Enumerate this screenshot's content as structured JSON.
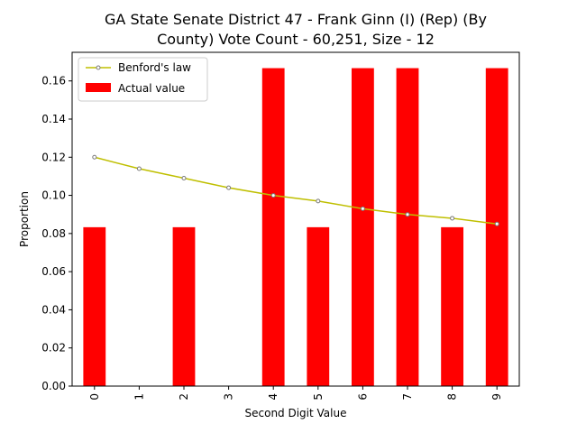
{
  "chart_data": {
    "type": "bar",
    "title_lines": [
      "GA State Senate District 47 - Frank Ginn (I) (Rep) (By",
      "County) Vote Count - 60,251, Size - 12"
    ],
    "xlabel": "Second Digit Value",
    "ylabel": "Proportion",
    "categories": [
      "0",
      "1",
      "2",
      "3",
      "4",
      "5",
      "6",
      "7",
      "8",
      "9"
    ],
    "ylim": [
      0,
      0.175
    ],
    "yticks": [
      0.0,
      0.02,
      0.04,
      0.06,
      0.08,
      0.1,
      0.12,
      0.14,
      0.16
    ],
    "ytick_labels": [
      "0.00",
      "0.02",
      "0.04",
      "0.06",
      "0.08",
      "0.10",
      "0.12",
      "0.14",
      "0.16"
    ],
    "grid": false,
    "legend_position": "top-left",
    "series": [
      {
        "name": "Benford's law",
        "kind": "line",
        "color": "#bfbf00",
        "values": [
          0.12,
          0.114,
          0.109,
          0.104,
          0.1,
          0.097,
          0.093,
          0.09,
          0.088,
          0.085
        ]
      },
      {
        "name": "Actual value",
        "kind": "bar",
        "color": "#ff0000",
        "values": [
          0.0833,
          0,
          0.0833,
          0,
          0.1667,
          0.0833,
          0.1667,
          0.1667,
          0.0833,
          0.1667
        ]
      }
    ]
  }
}
